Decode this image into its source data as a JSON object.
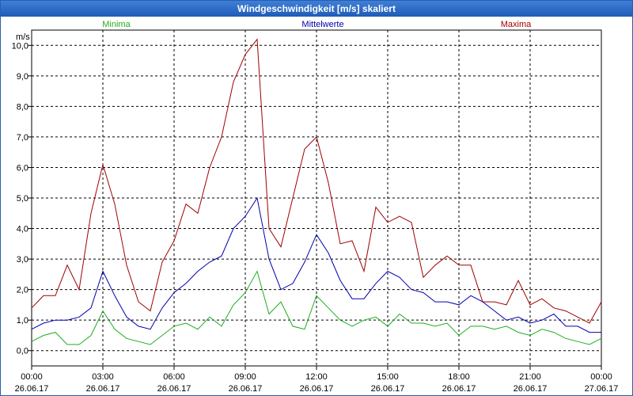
{
  "window": {
    "title": "Windgeschwindigkeit [m/s] skaliert"
  },
  "colors": {
    "minima": "#1fae1f",
    "mittel": "#0000b0",
    "maxima": "#a00000",
    "grid": "#000000"
  },
  "chart_data": {
    "type": "line",
    "title": "Windgeschwindigkeit [m/s] skaliert",
    "ylabel": "m/s",
    "xlabel": "",
    "ylim": [
      -0.5,
      10.5
    ],
    "xlim": [
      0,
      24
    ],
    "yticks": [
      0,
      1,
      2,
      3,
      4,
      5,
      6,
      7,
      8,
      9,
      10
    ],
    "ytick_labels": [
      "0,0",
      "1,0",
      "2,0",
      "3,0",
      "4,0",
      "5,0",
      "6,0",
      "7,0",
      "8,0",
      "9,0",
      "10,0"
    ],
    "xticks": [
      {
        "t": 0,
        "time": "00:00",
        "date": "26.06.17"
      },
      {
        "t": 3,
        "time": "03:00",
        "date": "26.06.17"
      },
      {
        "t": 6,
        "time": "06:00",
        "date": "26.06.17"
      },
      {
        "t": 9,
        "time": "09:00",
        "date": "26.06.17"
      },
      {
        "t": 12,
        "time": "12:00",
        "date": "26.06.17"
      },
      {
        "t": 15,
        "time": "15:00",
        "date": "26.06.17"
      },
      {
        "t": 18,
        "time": "18:00",
        "date": "26.06.17"
      },
      {
        "t": 21,
        "time": "21:00",
        "date": "26.06.17"
      },
      {
        "t": 24,
        "time": "00:00",
        "date": "27.06.17"
      }
    ],
    "grid": true,
    "series": [
      {
        "name": "Minima",
        "key": "minima",
        "x": [
          0,
          0.5,
          1,
          1.5,
          2,
          2.5,
          3,
          3.5,
          4,
          4.5,
          5,
          5.5,
          6,
          6.5,
          7,
          7.5,
          8,
          8.5,
          9,
          9.5,
          10,
          10.5,
          11,
          11.5,
          12,
          12.5,
          13,
          13.5,
          14,
          14.5,
          15,
          15.5,
          16,
          16.5,
          17,
          17.5,
          18,
          18.5,
          19,
          19.5,
          20,
          20.5,
          21,
          21.5,
          22,
          22.5,
          23,
          23.5,
          24
        ],
        "values": [
          0.3,
          0.5,
          0.6,
          0.2,
          0.2,
          0.5,
          1.3,
          0.7,
          0.4,
          0.3,
          0.2,
          0.5,
          0.8,
          0.9,
          0.7,
          1.1,
          0.8,
          1.5,
          1.9,
          2.6,
          1.2,
          1.6,
          0.8,
          0.7,
          1.8,
          1.4,
          1.0,
          0.8,
          1.0,
          1.1,
          0.8,
          1.2,
          0.9,
          0.9,
          0.8,
          0.9,
          0.5,
          0.8,
          0.8,
          0.7,
          0.8,
          0.6,
          0.5,
          0.7,
          0.6,
          0.4,
          0.3,
          0.2,
          0.4
        ]
      },
      {
        "name": "Mittelwerte",
        "key": "mittel",
        "x": [
          0,
          0.5,
          1,
          1.5,
          2,
          2.5,
          3,
          3.5,
          4,
          4.5,
          5,
          5.5,
          6,
          6.5,
          7,
          7.5,
          8,
          8.5,
          9,
          9.5,
          10,
          10.5,
          11,
          11.5,
          12,
          12.5,
          13,
          13.5,
          14,
          14.5,
          15,
          15.5,
          16,
          16.5,
          17,
          17.5,
          18,
          18.5,
          19,
          19.5,
          20,
          20.5,
          21,
          21.5,
          22,
          22.5,
          23,
          23.5,
          24
        ],
        "values": [
          0.7,
          0.9,
          1.0,
          1.0,
          1.1,
          1.4,
          2.6,
          1.8,
          1.1,
          0.8,
          0.7,
          1.4,
          1.9,
          2.2,
          2.6,
          2.9,
          3.1,
          4.0,
          4.4,
          5.0,
          3.0,
          2.0,
          2.2,
          2.9,
          3.8,
          3.2,
          2.3,
          1.7,
          1.7,
          2.2,
          2.6,
          2.4,
          2.0,
          1.9,
          1.6,
          1.6,
          1.5,
          1.8,
          1.6,
          1.3,
          1.0,
          1.1,
          0.9,
          1.0,
          1.2,
          0.8,
          0.8,
          0.6,
          0.6
        ]
      },
      {
        "name": "Maxima",
        "key": "maxima",
        "x": [
          0,
          0.5,
          1,
          1.5,
          2,
          2.5,
          3,
          3.5,
          4,
          4.5,
          5,
          5.5,
          6,
          6.5,
          7,
          7.5,
          8,
          8.5,
          9,
          9.5,
          10,
          10.5,
          11,
          11.5,
          12,
          12.5,
          13,
          13.5,
          14,
          14.5,
          15,
          15.5,
          16,
          16.5,
          17,
          17.5,
          18,
          18.5,
          19,
          19.5,
          20,
          20.5,
          21,
          21.5,
          22,
          22.5,
          23,
          23.5,
          24
        ],
        "values": [
          1.4,
          1.8,
          1.8,
          2.8,
          2.0,
          4.5,
          6.1,
          4.8,
          2.8,
          1.6,
          1.3,
          2.9,
          3.6,
          4.8,
          4.5,
          6.0,
          7.0,
          8.8,
          9.7,
          10.2,
          4.0,
          3.4,
          5.0,
          6.6,
          7.0,
          5.5,
          3.5,
          3.6,
          2.6,
          4.7,
          4.2,
          4.4,
          4.2,
          2.4,
          2.8,
          3.1,
          2.8,
          2.8,
          1.6,
          1.6,
          1.5,
          2.3,
          1.5,
          1.7,
          1.4,
          1.3,
          1.1,
          0.9,
          1.6
        ]
      }
    ]
  }
}
